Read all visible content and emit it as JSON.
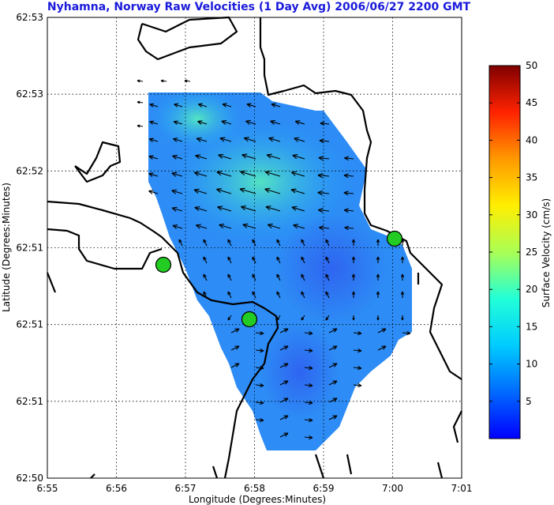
{
  "chart_data": {
    "type": "heatmap",
    "title": "Nyhamna, Norway Raw Velocities (1 Day Avg) 2006/06/27 2200 GMT",
    "xlabel": "Longitude (Degrees:Minutes)",
    "ylabel": "Latitude (Degrees:Minutes)",
    "x_ticks": [
      "6:55",
      "6:56",
      "6:57",
      "6:58",
      "6:59",
      "7:00",
      "7:01"
    ],
    "y_ticks": [
      "62:53",
      "62:53",
      "62:52",
      "62:51",
      "62:51",
      "62:51",
      "62:50"
    ],
    "grid": true,
    "colorbar": {
      "label": "Surface Velocity (cm/s)",
      "range": [
        0,
        50
      ],
      "ticks": [
        "5",
        "10",
        "15",
        "20",
        "25",
        "30",
        "35",
        "40",
        "45",
        "50"
      ],
      "colormap": "jet"
    },
    "stations": [
      {
        "lon_min": 56.7,
        "lat_rel": 0.48,
        "color": "#22cc22"
      },
      {
        "lon_min": 57.9,
        "lat_rel": 0.34,
        "color": "#22cc22"
      },
      {
        "lon_min": 60.0,
        "lat_rel": 0.58,
        "color": "#22cc22"
      }
    ],
    "speed_range_cm_s": [
      2,
      14
    ],
    "vector_field_note": "Vectors mostly point west-northwest in the northern part, east-southeast in the southern part."
  }
}
